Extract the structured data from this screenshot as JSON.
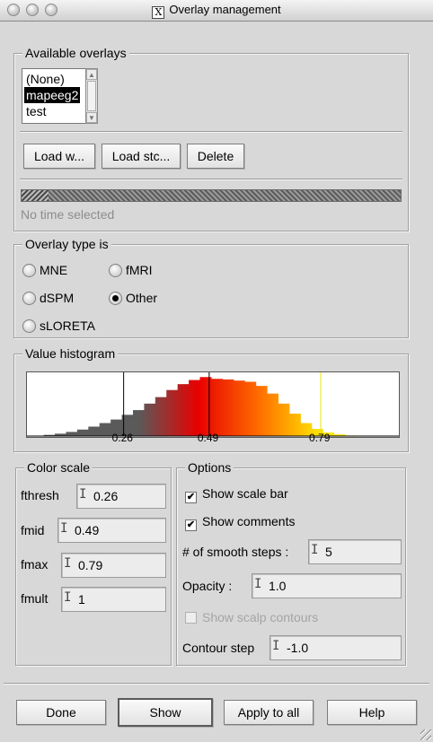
{
  "window": {
    "title": "Overlay management"
  },
  "available_overlays": {
    "legend": "Available overlays",
    "items": [
      "(None)",
      "mapeeg2",
      "test"
    ],
    "selected_index": 1,
    "buttons": {
      "load_w": "Load w...",
      "load_stc": "Load stc...",
      "delete": "Delete"
    },
    "progress_fraction": 0.07,
    "status_text": "No time selected"
  },
  "overlay_type": {
    "legend": "Overlay type is",
    "options": [
      {
        "label": "MNE",
        "checked": false
      },
      {
        "label": "fMRI",
        "checked": false
      },
      {
        "label": "dSPM",
        "checked": false
      },
      {
        "label": "Other",
        "checked": true
      },
      {
        "label": "sLORETA",
        "checked": false
      }
    ]
  },
  "histogram": {
    "legend": "Value histogram",
    "tick_labels": [
      "0.26",
      "0.49",
      "0.79"
    ],
    "markers": [
      0.26,
      0.49,
      0.79
    ],
    "marker_colors": [
      "#000000",
      "#000000",
      "#e8e800"
    ]
  },
  "chart_data": {
    "type": "area",
    "x": [
      0.03,
      0.06,
      0.09,
      0.12,
      0.15,
      0.18,
      0.21,
      0.24,
      0.27,
      0.3,
      0.33,
      0.36,
      0.39,
      0.42,
      0.45,
      0.48,
      0.51,
      0.54,
      0.57,
      0.6,
      0.63,
      0.66,
      0.69,
      0.72,
      0.75,
      0.78,
      0.81,
      0.84,
      0.87,
      0.9,
      0.93
    ],
    "y": [
      0.0,
      0.02,
      0.04,
      0.07,
      0.11,
      0.16,
      0.22,
      0.28,
      0.36,
      0.44,
      0.55,
      0.66,
      0.78,
      0.88,
      0.95,
      1.0,
      0.97,
      0.96,
      0.94,
      0.92,
      0.85,
      0.72,
      0.55,
      0.38,
      0.22,
      0.12,
      0.06,
      0.03,
      0.01,
      0.0,
      0.0
    ],
    "xlim": [
      0.0,
      1.0
    ],
    "ylim": [
      0,
      1.08
    ],
    "colors": {
      "below_fthresh": "#5a5a5a",
      "fmid": "#e80000",
      "fmax": "#ffe000"
    }
  },
  "color_scale": {
    "legend": "Color scale",
    "fields": [
      {
        "label": "fthresh",
        "value": "0.26"
      },
      {
        "label": "fmid",
        "value": "0.49"
      },
      {
        "label": "fmax",
        "value": "0.79"
      },
      {
        "label": "fmult",
        "value": "1"
      }
    ]
  },
  "options": {
    "legend": "Options",
    "show_scale_bar": {
      "label": "Show scale bar",
      "checked": true
    },
    "show_comments": {
      "label": "Show comments",
      "checked": true
    },
    "smooth_steps": {
      "label": "# of smooth steps :",
      "value": "5"
    },
    "opacity": {
      "label": "Opacity :",
      "value": "1.0"
    },
    "show_scalp_contours": {
      "label": "Show scalp contours",
      "checked": false,
      "disabled": true
    },
    "contour_step": {
      "label": "Contour step",
      "value": "-1.0"
    }
  },
  "footer": {
    "done": "Done",
    "show": "Show",
    "apply_to_all": "Apply to all",
    "help": "Help"
  },
  "icons": {
    "window_app": "x11-icon",
    "check": "✔"
  }
}
